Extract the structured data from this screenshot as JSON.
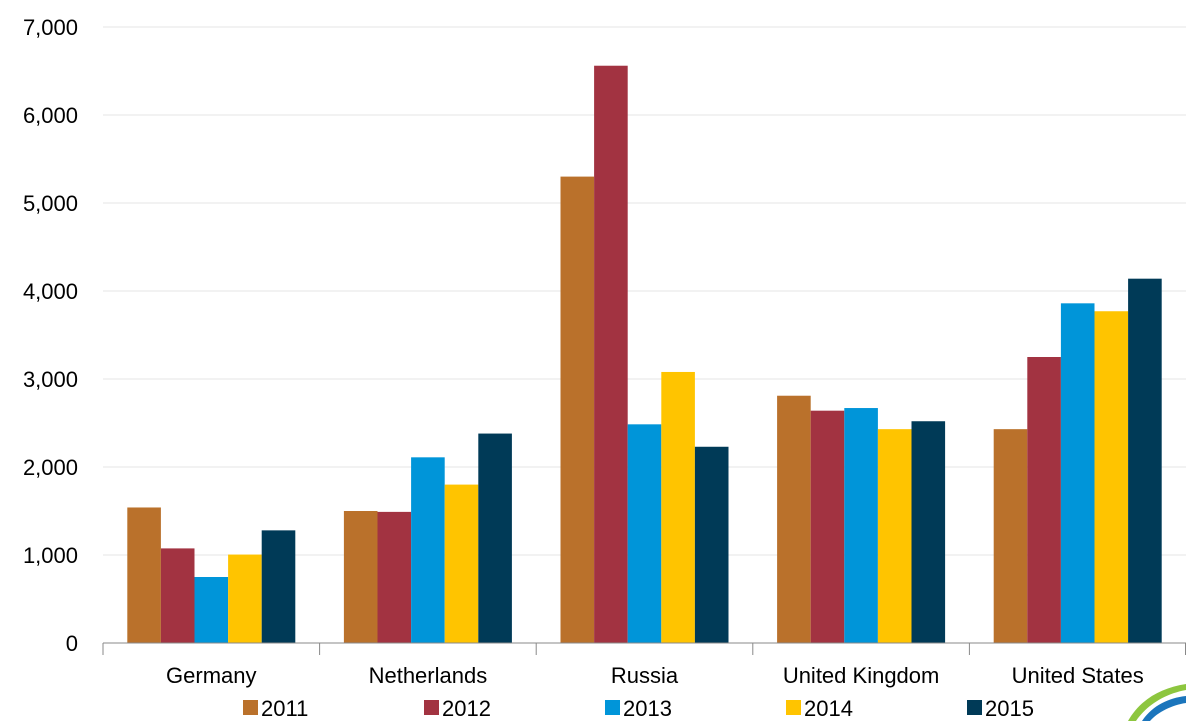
{
  "chart_data": {
    "type": "bar",
    "categories": [
      "Germany",
      "Netherlands",
      "Russia",
      "United Kingdom",
      "United States"
    ],
    "series": [
      {
        "name": "2011",
        "color": "#BA712B",
        "values": [
          1540,
          1500,
          5300,
          2810,
          2430
        ]
      },
      {
        "name": "2012",
        "color": "#A23341",
        "values": [
          1075,
          1490,
          6560,
          2640,
          3250
        ]
      },
      {
        "name": "2013",
        "color": "#0095D9",
        "values": [
          750,
          2110,
          2485,
          2670,
          3860
        ]
      },
      {
        "name": "2014",
        "color": "#FFC400",
        "values": [
          1005,
          1800,
          3080,
          2430,
          3770
        ]
      },
      {
        "name": "2015",
        "color": "#003A57",
        "values": [
          1280,
          2380,
          2230,
          2520,
          4140
        ]
      }
    ],
    "y_ticks": [
      "0",
      "1,000",
      "2,000",
      "3,000",
      "4,000",
      "5,000",
      "6,000",
      "7,000"
    ],
    "ylim": [
      0,
      7000
    ],
    "grid": true,
    "legend_position": "bottom"
  }
}
